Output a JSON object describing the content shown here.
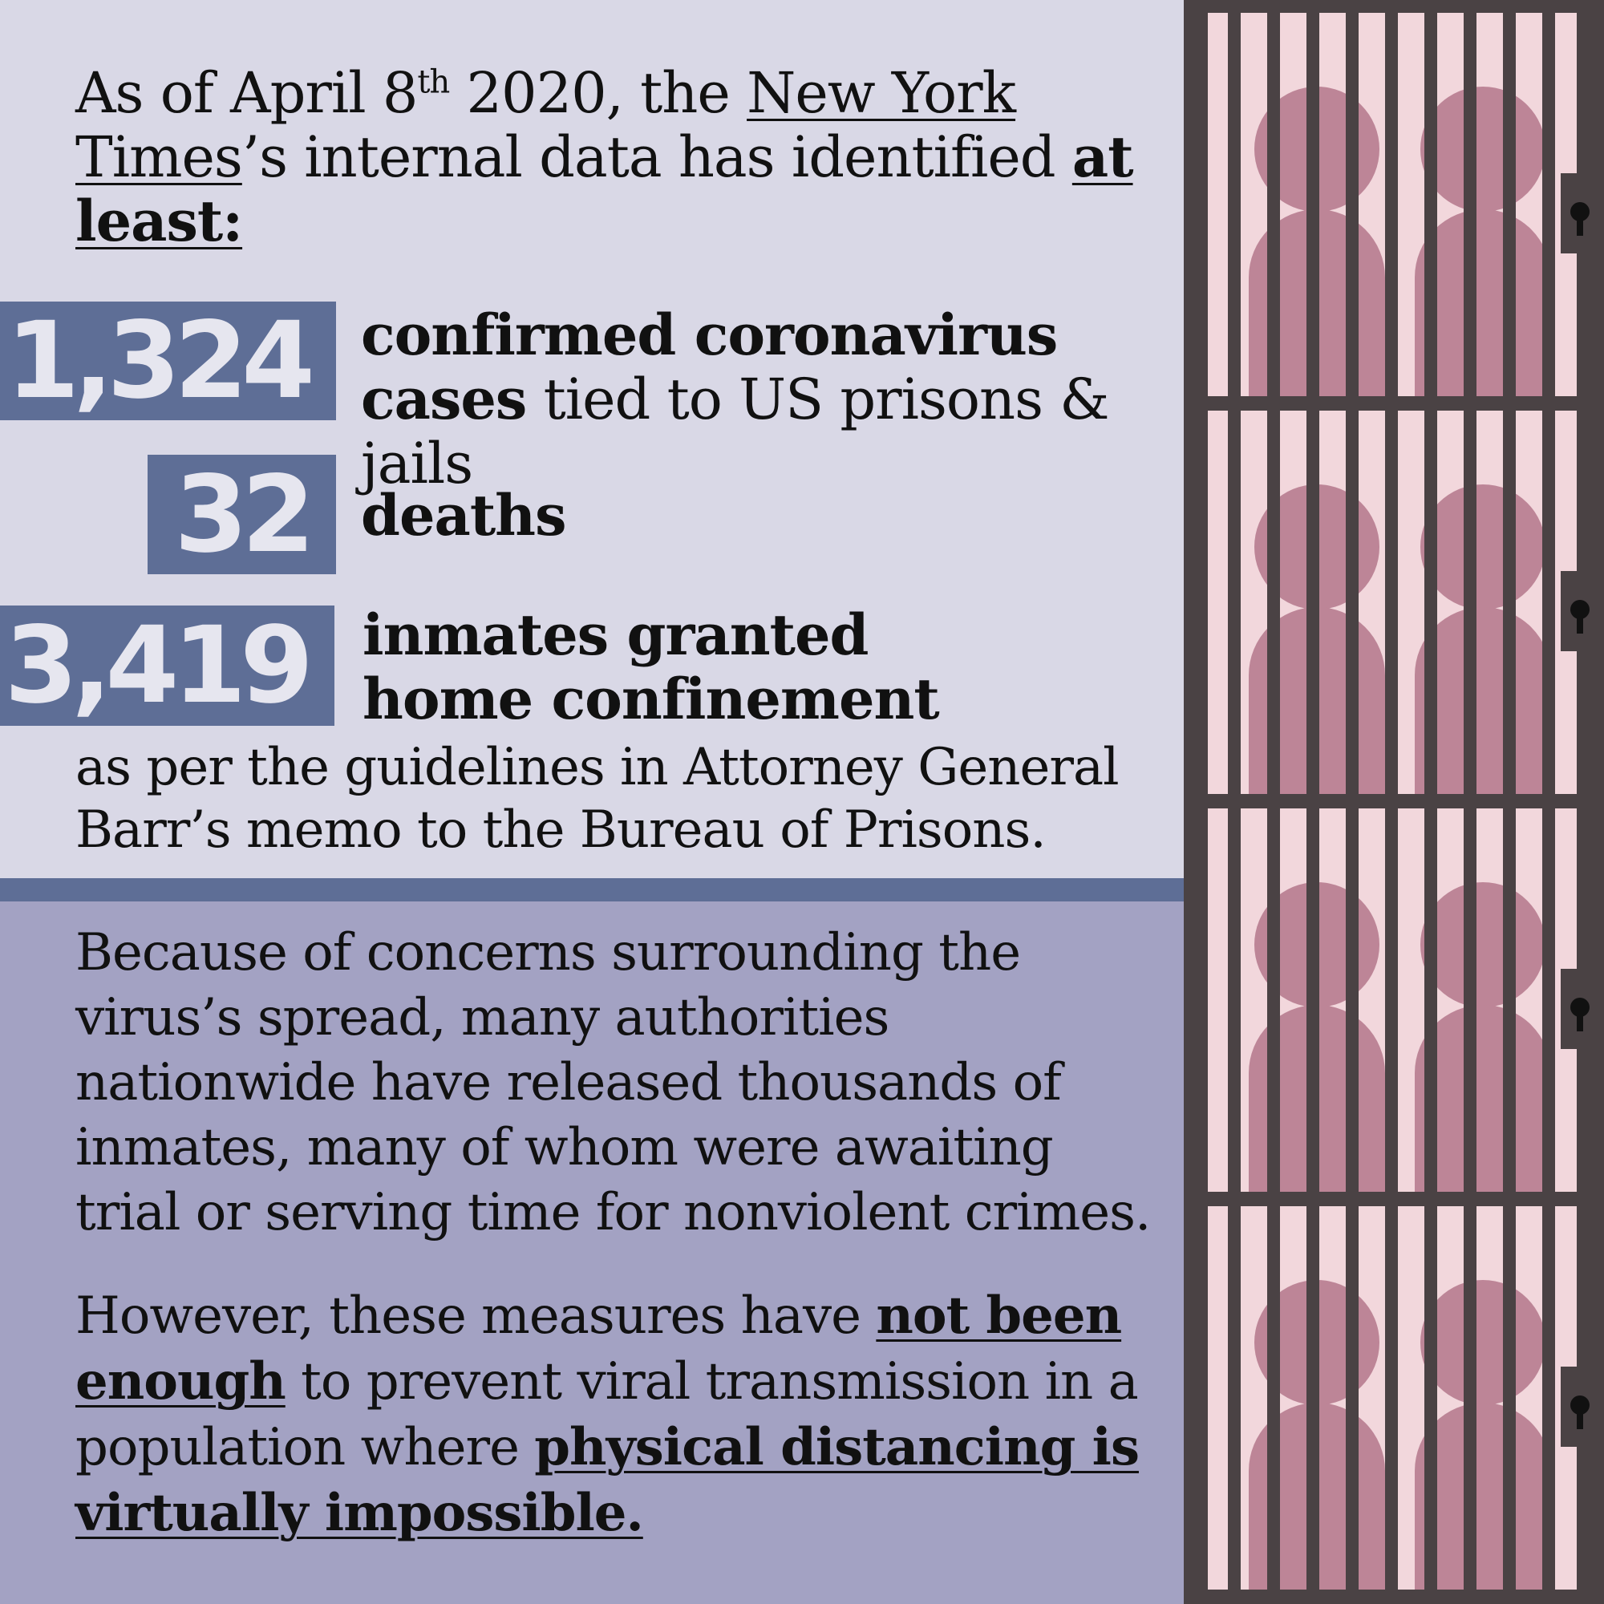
{
  "intro": {
    "prefix": "As of April 8",
    "superscript": "th",
    "year_text": " 2020, the ",
    "source": "New York Times",
    "after_source": "’s internal data has identified ",
    "emphasis": "at least:"
  },
  "stats": [
    {
      "value": "1,324",
      "bold": "confirmed coronavirus cases",
      "rest": " tied to US prisons & jails"
    },
    {
      "value": "32",
      "bold": "deaths",
      "rest": ""
    },
    {
      "value": "3,419",
      "bold": "inmates granted home confinement",
      "rest": ""
    }
  ],
  "note": "as per the guidelines in Attorney General Barr’s memo to the Bureau of Prisons.",
  "paragraph1": "Because of concerns surrounding the virus’s spread, many authorities nationwide have released thousands of inmates, many of whom were awaiting trial or serving time for nonviolent crimes.",
  "paragraph2": {
    "part1": "However, these measures have ",
    "emph1": "not been enough",
    "part2": " to prevent viral transmission in a population where ",
    "emph2": "physical distancing is virtually impossible."
  },
  "colors": {
    "top_bg": "#d9d8e6",
    "bottom_bg": "#a3a2c3",
    "accent": "#5e6e96",
    "bars": "#4a4244",
    "cell_light": "#f2d7dc",
    "figure": "#bd8597"
  }
}
